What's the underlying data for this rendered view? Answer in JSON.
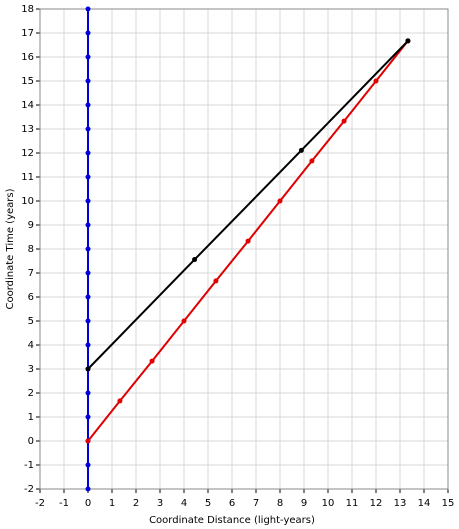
{
  "chart_data": {
    "type": "line",
    "xlabel": "Coordinate Distance (light-years)",
    "ylabel": "Coordinate Time (years)",
    "xlim": [
      -2,
      15
    ],
    "ylim": [
      -2,
      18
    ],
    "xticks": [
      -2,
      -1,
      0,
      1,
      2,
      3,
      4,
      5,
      6,
      7,
      8,
      9,
      10,
      11,
      12,
      13,
      14,
      15
    ],
    "yticks": [
      -2,
      -1,
      0,
      1,
      2,
      3,
      4,
      5,
      6,
      7,
      8,
      9,
      10,
      11,
      12,
      13,
      14,
      15,
      16,
      17,
      18
    ],
    "grid": true,
    "series": [
      {
        "color": "#0000dd",
        "x": [
          0,
          0,
          0,
          0,
          0,
          0,
          0,
          0,
          0,
          0,
          0,
          0,
          0,
          0,
          0,
          0,
          0,
          0,
          0,
          0,
          0
        ],
        "values": [
          -2,
          -1,
          0,
          1,
          2,
          3,
          4,
          5,
          6,
          7,
          8,
          9,
          10,
          11,
          12,
          13,
          14,
          15,
          16,
          17,
          18
        ]
      },
      {
        "color": "#e00000",
        "x": [
          0,
          1.33,
          2.67,
          4,
          5.33,
          6.67,
          8,
          9.33,
          10.67,
          12,
          13.33
        ],
        "values": [
          0,
          1.67,
          3.33,
          5,
          6.67,
          8.33,
          10,
          11.67,
          13.33,
          15,
          16.67
        ]
      },
      {
        "color": "#000000",
        "x": [
          0,
          4.44,
          8.89,
          13.33
        ],
        "values": [
          3,
          7.56,
          12.11,
          16.67
        ]
      }
    ]
  }
}
